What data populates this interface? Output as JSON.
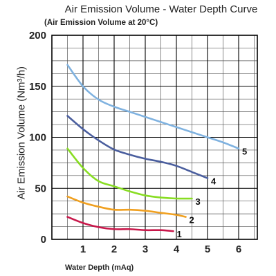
{
  "chart_data": {
    "type": "line",
    "title": "Air Emission Volume - Water Depth Curve",
    "subtitle": "(Air Emission Volume at 20°C)",
    "xlabel": "Water Depth (mAq)",
    "ylabel": "Air Emission Volume (Nm³/h)",
    "xlim": [
      0,
      6.6
    ],
    "ylim": [
      0,
      200
    ],
    "x_ticks": [
      1,
      2,
      3,
      4,
      5,
      6
    ],
    "y_ticks": [
      0,
      50,
      100,
      150,
      200
    ],
    "grid": true,
    "series": [
      {
        "name": "1",
        "color": "#c8174a",
        "x": [
          0.5,
          1.0,
          1.5,
          2.0,
          2.5,
          3.0,
          3.5,
          3.9
        ],
        "y": [
          22,
          16,
          12,
          10,
          10,
          9,
          9,
          8
        ]
      },
      {
        "name": "2",
        "color": "#f0a020",
        "x": [
          0.5,
          1.0,
          1.5,
          2.0,
          2.5,
          3.0,
          3.5,
          4.0,
          4.3
        ],
        "y": [
          42,
          36,
          32,
          29,
          29,
          28,
          26,
          24,
          22
        ]
      },
      {
        "name": "3",
        "color": "#88dd22",
        "x": [
          0.5,
          1.0,
          1.5,
          2.0,
          2.5,
          3.0,
          3.5,
          4.0,
          4.5
        ],
        "y": [
          89,
          70,
          57,
          52,
          47,
          43,
          41,
          40,
          40
        ]
      },
      {
        "name": "4",
        "color": "#4a5e9e",
        "x": [
          0.5,
          1.0,
          1.5,
          2.0,
          2.5,
          3.0,
          3.5,
          4.0,
          4.5,
          5.0
        ],
        "y": [
          121,
          108,
          97,
          88,
          83,
          79,
          76,
          72,
          66,
          60
        ]
      },
      {
        "name": "5",
        "color": "#7fb2e0",
        "x": [
          0.5,
          1.0,
          1.5,
          2.0,
          2.5,
          3.0,
          3.5,
          4.0,
          4.5,
          5.0,
          5.5,
          6.0
        ],
        "y": [
          171,
          150,
          137,
          130,
          125,
          120,
          115,
          110,
          105,
          100,
          95,
          89
        ]
      }
    ]
  }
}
